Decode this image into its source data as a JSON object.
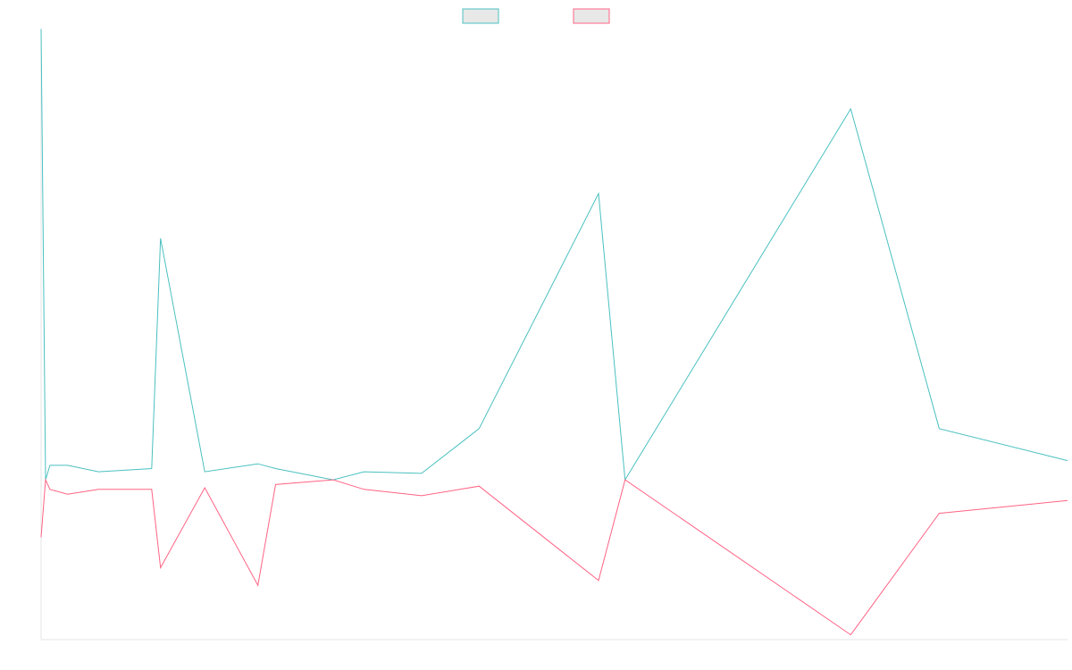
{
  "chart_data": {
    "type": "line",
    "title": "",
    "xlabel": "",
    "ylabel": "",
    "grid": false,
    "legend_position": "top-center",
    "x": [
      0,
      0.5,
      1,
      3,
      6.5,
      12.5,
      13.5,
      18.5,
      24.5,
      26.5,
      33,
      36.5,
      43,
      49.5,
      63,
      66,
      91.5,
      101.5,
      116
    ],
    "ylim": [
      -100,
      280
    ],
    "series": [
      {
        "color": "#4bc0c0",
        "fill": "#e8e8e8",
        "values": [
          282,
          0,
          9,
          9,
          5,
          7,
          151,
          5,
          10,
          7,
          0,
          5,
          4,
          32,
          179,
          0,
          232,
          32,
          12
        ]
      },
      {
        "color": "#ff6384",
        "fill": "#e8e8e8",
        "values": [
          -36,
          0,
          -6,
          -9,
          -6,
          -6,
          -55,
          -5,
          -66,
          -3,
          0,
          -6,
          -10,
          -4,
          -63,
          0,
          -97,
          -21,
          -13
        ]
      }
    ]
  }
}
